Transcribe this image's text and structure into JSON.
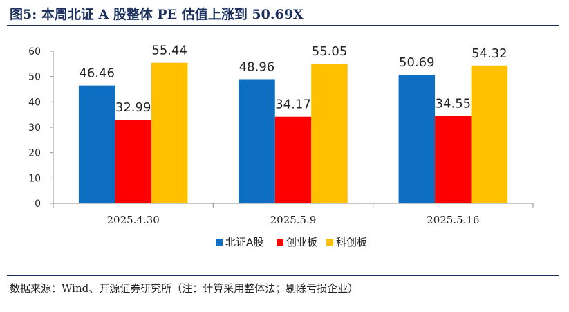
{
  "header": {
    "title": "图5:  本周北证 A 股整体 PE 估值上涨到 50.69X"
  },
  "footer": {
    "source": "数据来源：Wind、开源证券研究所（注：计算采用整体法；剔除亏损企业）"
  },
  "chart_data": {
    "type": "bar",
    "title": "本周北证 A 股整体 PE 估值上涨到 50.69X",
    "categories": [
      "2025.4.30",
      "2025.5.9",
      "2025.5.16"
    ],
    "series": [
      {
        "name": "北证A股",
        "color": "#0e6fc2",
        "values": [
          46.46,
          48.96,
          50.69
        ]
      },
      {
        "name": "创业板",
        "color": "#ff0000",
        "values": [
          32.99,
          34.17,
          34.55
        ]
      },
      {
        "name": "科创板",
        "color": "#ffc000",
        "values": [
          55.44,
          55.05,
          54.32
        ]
      }
    ],
    "ylim": [
      0,
      60
    ],
    "yticks": [
      0,
      10,
      20,
      30,
      40,
      50,
      60
    ],
    "xlabel": "",
    "ylabel": "",
    "grid": false,
    "legend": "bottom-center"
  }
}
